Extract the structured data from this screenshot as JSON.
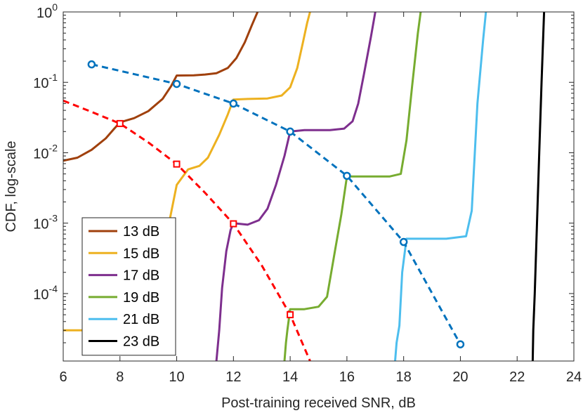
{
  "chart_data": {
    "type": "line",
    "title": "",
    "xlabel": "Post-training received SNR, dB",
    "ylabel": "CDF, log-scale",
    "xscale": "linear",
    "yscale": "log",
    "xlim": [
      6,
      24
    ],
    "ylim": [
      1.1e-05,
      1
    ],
    "grid": false,
    "legend_location": "bottom-left",
    "xticks": [
      6,
      8,
      10,
      12,
      14,
      16,
      18,
      20,
      22,
      24
    ],
    "xtick_labels": [
      "6",
      "8",
      "10",
      "12",
      "14",
      "16",
      "18",
      "20",
      "22",
      "24"
    ],
    "yticks": [
      {
        "value": 0.0001,
        "base": "10",
        "exp": "-4"
      },
      {
        "value": 0.001,
        "base": "10",
        "exp": "-3"
      },
      {
        "value": 0.01,
        "base": "10",
        "exp": "-2"
      },
      {
        "value": 0.1,
        "base": "10",
        "exp": "-1"
      },
      {
        "value": 1,
        "base": "10",
        "exp": "0"
      }
    ],
    "series": [
      {
        "name": "13 dB",
        "color": "#a0400c",
        "style": "solid",
        "points": [
          [
            6,
            0.0077
          ],
          [
            6.5,
            0.0085
          ],
          [
            7,
            0.011
          ],
          [
            7.5,
            0.016
          ],
          [
            7.8,
            0.022
          ],
          [
            8,
            0.027
          ],
          [
            8.5,
            0.031
          ],
          [
            9,
            0.039
          ],
          [
            9.5,
            0.058
          ],
          [
            9.8,
            0.088
          ],
          [
            10,
            0.125
          ],
          [
            10.6,
            0.126
          ],
          [
            11,
            0.129
          ],
          [
            11.4,
            0.135
          ],
          [
            11.8,
            0.16
          ],
          [
            12.1,
            0.22
          ],
          [
            12.4,
            0.37
          ],
          [
            12.65,
            0.65
          ],
          [
            12.85,
            1.0
          ]
        ]
      },
      {
        "name": "15 dB",
        "color": "#edb120",
        "style": "solid",
        "points": [
          [
            6,
            3e-05
          ],
          [
            9.5,
            3e-05
          ],
          [
            9.6,
            0.00055
          ],
          [
            10,
            0.0035
          ],
          [
            10.4,
            0.0058
          ],
          [
            10.8,
            0.0065
          ],
          [
            11.1,
            0.0085
          ],
          [
            11.5,
            0.018
          ],
          [
            11.8,
            0.035
          ],
          [
            12,
            0.057
          ],
          [
            12.5,
            0.058
          ],
          [
            13.2,
            0.059
          ],
          [
            13.7,
            0.065
          ],
          [
            14,
            0.085
          ],
          [
            14.25,
            0.16
          ],
          [
            14.45,
            0.37
          ],
          [
            14.6,
            0.7
          ],
          [
            14.7,
            1.0
          ]
        ]
      },
      {
        "name": "17 dB",
        "color": "#7e2f8e",
        "style": "solid",
        "points": [
          [
            11.4,
            1.1e-05
          ],
          [
            11.5,
            3e-05
          ],
          [
            11.6,
            0.00012
          ],
          [
            11.75,
            0.0004
          ],
          [
            11.9,
            0.0008
          ],
          [
            12,
            0.001
          ],
          [
            12.5,
            0.00095
          ],
          [
            12.9,
            0.0011
          ],
          [
            13.2,
            0.0016
          ],
          [
            13.5,
            0.0035
          ],
          [
            13.8,
            0.009
          ],
          [
            14,
            0.02
          ],
          [
            14.5,
            0.021
          ],
          [
            15.4,
            0.021
          ],
          [
            15.9,
            0.022
          ],
          [
            16.2,
            0.028
          ],
          [
            16.4,
            0.05
          ],
          [
            16.6,
            0.13
          ],
          [
            16.85,
            0.45
          ],
          [
            17.0,
            1.0
          ]
        ]
      },
      {
        "name": "19 dB",
        "color": "#77ac30",
        "style": "solid",
        "points": [
          [
            13.8,
            1.1e-05
          ],
          [
            13.85,
            2e-05
          ],
          [
            13.9,
            3e-05
          ],
          [
            14,
            6e-05
          ],
          [
            14.5,
            6e-05
          ],
          [
            15,
            6.5e-05
          ],
          [
            15.3,
            9e-05
          ],
          [
            15.6,
            0.00045
          ],
          [
            15.8,
            0.0013
          ],
          [
            16,
            0.0046
          ],
          [
            17.5,
            0.0046
          ],
          [
            17.9,
            0.005
          ],
          [
            18.1,
            0.015
          ],
          [
            18.3,
            0.09
          ],
          [
            18.5,
            0.5
          ],
          [
            18.6,
            1.0
          ]
        ]
      },
      {
        "name": "21 dB",
        "color": "#4dbeee",
        "style": "solid",
        "points": [
          [
            17.7,
            1.1e-05
          ],
          [
            17.75,
            2e-05
          ],
          [
            17.85,
            3.5e-05
          ],
          [
            17.95,
            0.0002
          ],
          [
            18.1,
            0.0006
          ],
          [
            18.5,
            0.0006
          ],
          [
            19.5,
            0.0006
          ],
          [
            20.2,
            0.00065
          ],
          [
            20.4,
            0.0015
          ],
          [
            20.6,
            0.05
          ],
          [
            20.8,
            0.4
          ],
          [
            20.9,
            1.0
          ]
        ]
      },
      {
        "name": "23 dB",
        "color": "#000000",
        "style": "solid",
        "points": [
          [
            22.55,
            1.1e-05
          ],
          [
            22.57,
            3e-05
          ],
          [
            22.62,
            0.0001
          ],
          [
            22.7,
            0.001
          ],
          [
            22.78,
            0.01
          ],
          [
            22.86,
            0.1
          ],
          [
            22.95,
            1.0
          ]
        ]
      },
      {
        "name": "threshold-blue",
        "color": "#0072bd",
        "style": "dashed",
        "marker": "circle",
        "legend": false,
        "points": [
          [
            7,
            0.18
          ],
          [
            10,
            0.095
          ],
          [
            12,
            0.05
          ],
          [
            14,
            0.02
          ],
          [
            16,
            0.0047
          ],
          [
            18,
            0.00054
          ],
          [
            20,
            1.9e-05
          ]
        ]
      },
      {
        "name": "threshold-red",
        "color": "#ff0000",
        "style": "dashed",
        "marker": "square",
        "legend": false,
        "line_points": [
          [
            6,
            0.055
          ],
          [
            7,
            0.038
          ],
          [
            8,
            0.026
          ],
          [
            9,
            0.014
          ],
          [
            10,
            0.0069
          ],
          [
            11,
            0.0027
          ],
          [
            12,
            0.00098
          ],
          [
            13,
            0.00025
          ],
          [
            14,
            5e-05
          ],
          [
            14.7,
            1.1e-05
          ]
        ],
        "points": [
          [
            8,
            0.026
          ],
          [
            10,
            0.0069
          ],
          [
            12,
            0.00098
          ],
          [
            14,
            5e-05
          ]
        ]
      }
    ]
  }
}
